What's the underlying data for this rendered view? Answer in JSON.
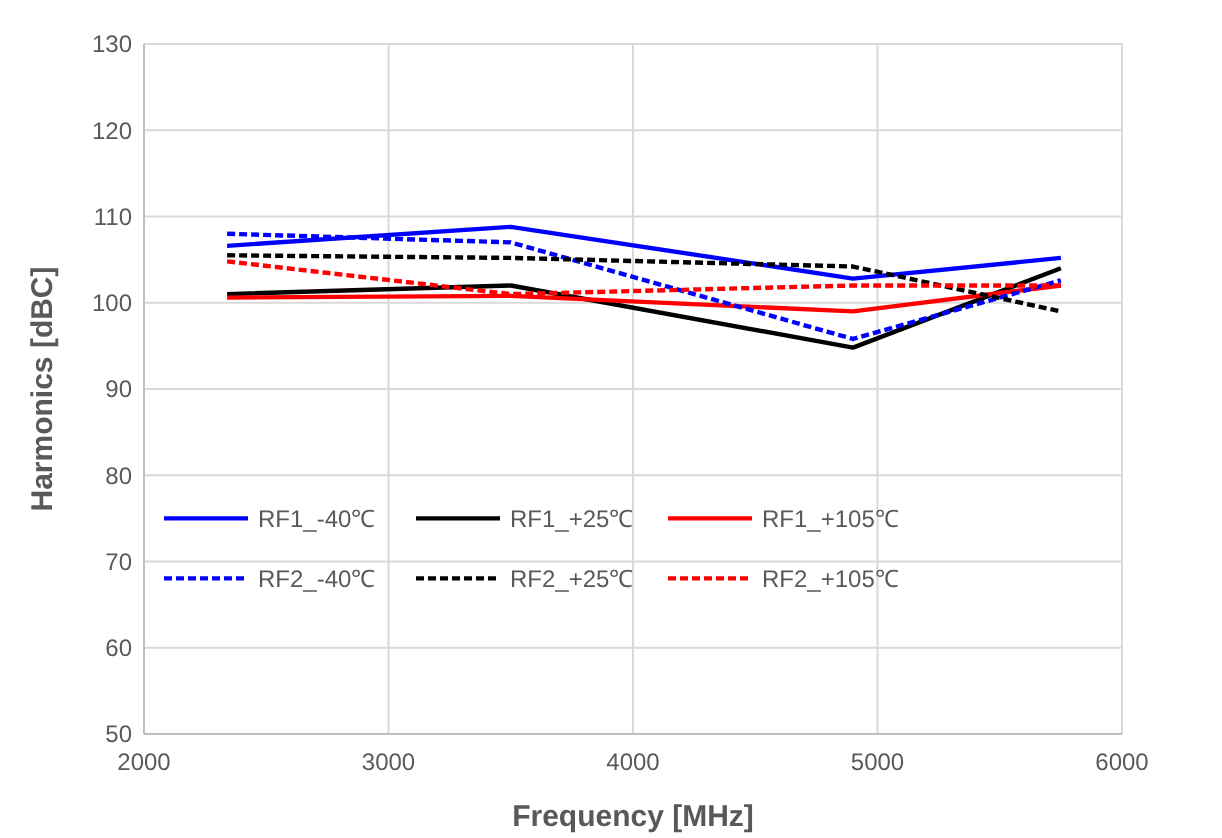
{
  "chart_data": {
    "type": "line",
    "xlabel": "Frequency [MHz]",
    "ylabel": "Harmonics [dBC]",
    "x": [
      2340,
      3500,
      4900,
      5750
    ],
    "xlim": [
      2000,
      6000
    ],
    "xticks": [
      2000,
      3000,
      4000,
      5000,
      6000
    ],
    "ylim": [
      50,
      130
    ],
    "yticks": [
      50,
      60,
      70,
      80,
      90,
      100,
      110,
      120,
      130
    ],
    "grid": true,
    "legend": "bottom left",
    "marker": "none",
    "series": [
      {
        "name": "RF1_-40℃",
        "color": "#0000ff",
        "line_style": "solid",
        "values": [
          106.6,
          108.8,
          102.8,
          105.2
        ]
      },
      {
        "name": "RF1_+25℃",
        "color": "#000000",
        "line_style": "solid",
        "values": [
          101,
          102,
          94.8,
          104
        ]
      },
      {
        "name": "RF1_+105℃",
        "color": "#ff0000",
        "line_style": "solid",
        "values": [
          100.6,
          100.8,
          99,
          102
        ]
      },
      {
        "name": "RF2_-40℃",
        "color": "#0000ff",
        "line_style": "dashed",
        "values": [
          108,
          107,
          95.8,
          102.6
        ]
      },
      {
        "name": "RF2_+25℃",
        "color": "#000000",
        "line_style": "dashed",
        "values": [
          105.5,
          105.2,
          104.2,
          99
        ]
      },
      {
        "name": "RF2_+105℃",
        "color": "#ff0000",
        "line_style": "dashed",
        "values": [
          104.8,
          101,
          102,
          102
        ]
      }
    ]
  }
}
